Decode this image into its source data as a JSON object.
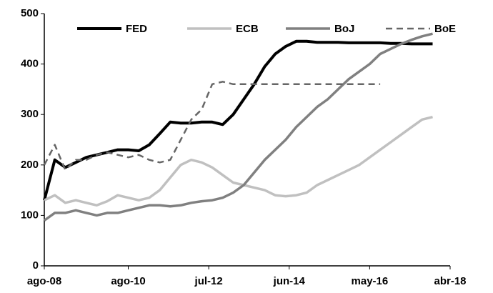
{
  "chart_data": {
    "type": "line",
    "x": [
      "2008-08",
      "2008-11",
      "2009-02",
      "2009-05",
      "2009-08",
      "2009-11",
      "2010-02",
      "2010-05",
      "2010-08",
      "2010-11",
      "2011-02",
      "2011-05",
      "2011-08",
      "2011-11",
      "2012-02",
      "2012-05",
      "2012-08",
      "2012-11",
      "2013-02",
      "2013-05",
      "2013-08",
      "2013-11",
      "2014-02",
      "2014-05",
      "2014-08",
      "2014-11",
      "2015-02",
      "2015-05",
      "2015-08",
      "2015-11",
      "2016-02",
      "2016-05",
      "2016-08",
      "2016-11",
      "2017-02",
      "2017-05",
      "2017-08",
      "2017-11"
    ],
    "series": [
      {
        "name": "FED",
        "color": "#000000",
        "width": 4,
        "style": "solid",
        "values": [
          130,
          210,
          195,
          205,
          215,
          220,
          225,
          230,
          230,
          228,
          240,
          262,
          285,
          283,
          283,
          285,
          285,
          280,
          300,
          330,
          360,
          395,
          420,
          435,
          445,
          445,
          443,
          443,
          443,
          442,
          442,
          442,
          442,
          441,
          441,
          440,
          440,
          440
        ]
      },
      {
        "name": "ECB",
        "color": "#c0c0c0",
        "width": 3.5,
        "style": "solid",
        "values": [
          130,
          140,
          125,
          130,
          125,
          120,
          128,
          140,
          135,
          130,
          135,
          150,
          175,
          200,
          210,
          205,
          195,
          180,
          165,
          160,
          155,
          150,
          140,
          138,
          140,
          145,
          160,
          170,
          180,
          190,
          200,
          215,
          230,
          245,
          260,
          275,
          290,
          295
        ]
      },
      {
        "name": "BoJ",
        "color": "#808080",
        "width": 3.5,
        "style": "solid",
        "values": [
          90,
          105,
          105,
          110,
          105,
          100,
          105,
          105,
          110,
          115,
          120,
          120,
          118,
          120,
          125,
          128,
          130,
          135,
          145,
          160,
          185,
          210,
          230,
          250,
          275,
          295,
          315,
          330,
          350,
          370,
          385,
          400,
          420,
          430,
          440,
          448,
          455,
          460
        ]
      },
      {
        "name": "BoE",
        "color": "#666666",
        "width": 2.5,
        "style": "dashed",
        "values": [
          200,
          240,
          190,
          210,
          210,
          220,
          225,
          220,
          215,
          220,
          210,
          205,
          210,
          250,
          290,
          310,
          360,
          365,
          360,
          360,
          360,
          360,
          360,
          360,
          360,
          360,
          360,
          360,
          360,
          360,
          360,
          360,
          360,
          null,
          null,
          null,
          null,
          null
        ]
      }
    ],
    "xlim": [
      "2008-08",
      "2018-04"
    ],
    "xticks": [
      {
        "value": "2008-08",
        "label": "ago-08"
      },
      {
        "value": "2010-08",
        "label": "ago-10"
      },
      {
        "value": "2012-07",
        "label": "jul-12"
      },
      {
        "value": "2014-06",
        "label": "jun-14"
      },
      {
        "value": "2016-05",
        "label": "may-16"
      },
      {
        "value": "2018-04",
        "label": "abr-18"
      }
    ],
    "ylim": [
      0,
      500
    ],
    "yticks": [
      0,
      100,
      200,
      300,
      400,
      500
    ],
    "grid": false
  }
}
